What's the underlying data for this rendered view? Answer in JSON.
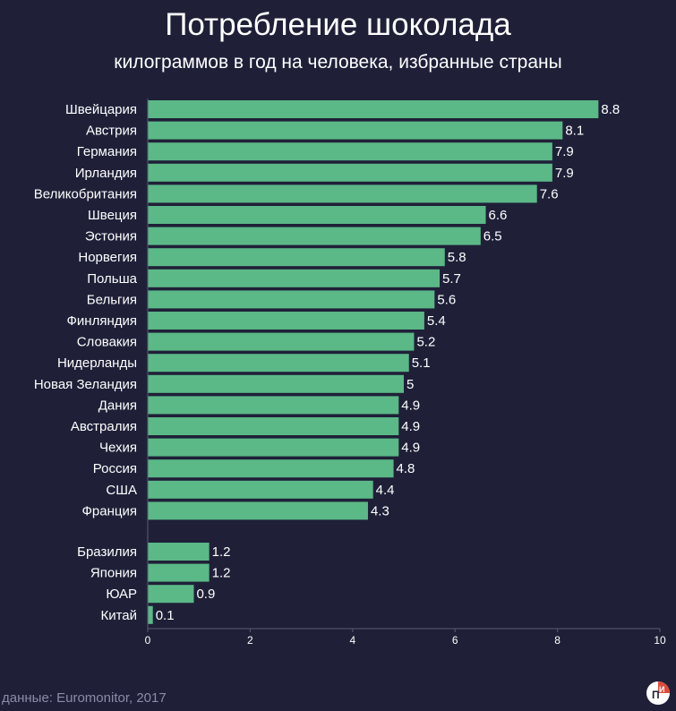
{
  "colors": {
    "background": "#1f2038",
    "bar": "#5bb887",
    "axis": "#5a5b74",
    "source_text": "#8a8ba6"
  },
  "chart_data": {
    "type": "bar",
    "orientation": "horizontal",
    "title": "Потребление шоколада",
    "subtitle": "килограммов в год на человека, избранные страны",
    "xlim": [
      0,
      10
    ],
    "xticks": [
      "0",
      "2",
      "4",
      "6",
      "8",
      "10"
    ],
    "xlabel": "",
    "ylabel": "",
    "groups": [
      {
        "categories": [
          "Швейцария",
          "Австрия",
          "Германия",
          "Ирландия",
          "Великобритания",
          "Швеция",
          "Эстония",
          "Норвегия",
          "Польша",
          "Бельгия",
          "Финляндия",
          "Словакия",
          "Нидерланды",
          "Новая Зеландия",
          "Дания",
          "Австралия",
          "Чехия",
          "Россия",
          "США",
          "Франция"
        ],
        "values": [
          8.8,
          8.1,
          7.9,
          7.9,
          7.6,
          6.6,
          6.5,
          5.8,
          5.7,
          5.6,
          5.4,
          5.2,
          5.1,
          5,
          4.9,
          4.9,
          4.9,
          4.8,
          4.4,
          4.3
        ]
      },
      {
        "categories": [
          "Бразилия",
          "Япония",
          "ЮАР",
          "Китай"
        ],
        "values": [
          1.2,
          1.2,
          0.9,
          0.1
        ]
      }
    ]
  },
  "source": "данные: Euromonitor, 2017",
  "logo": {
    "icon": "pi-logo-icon",
    "text": "ПИ"
  }
}
